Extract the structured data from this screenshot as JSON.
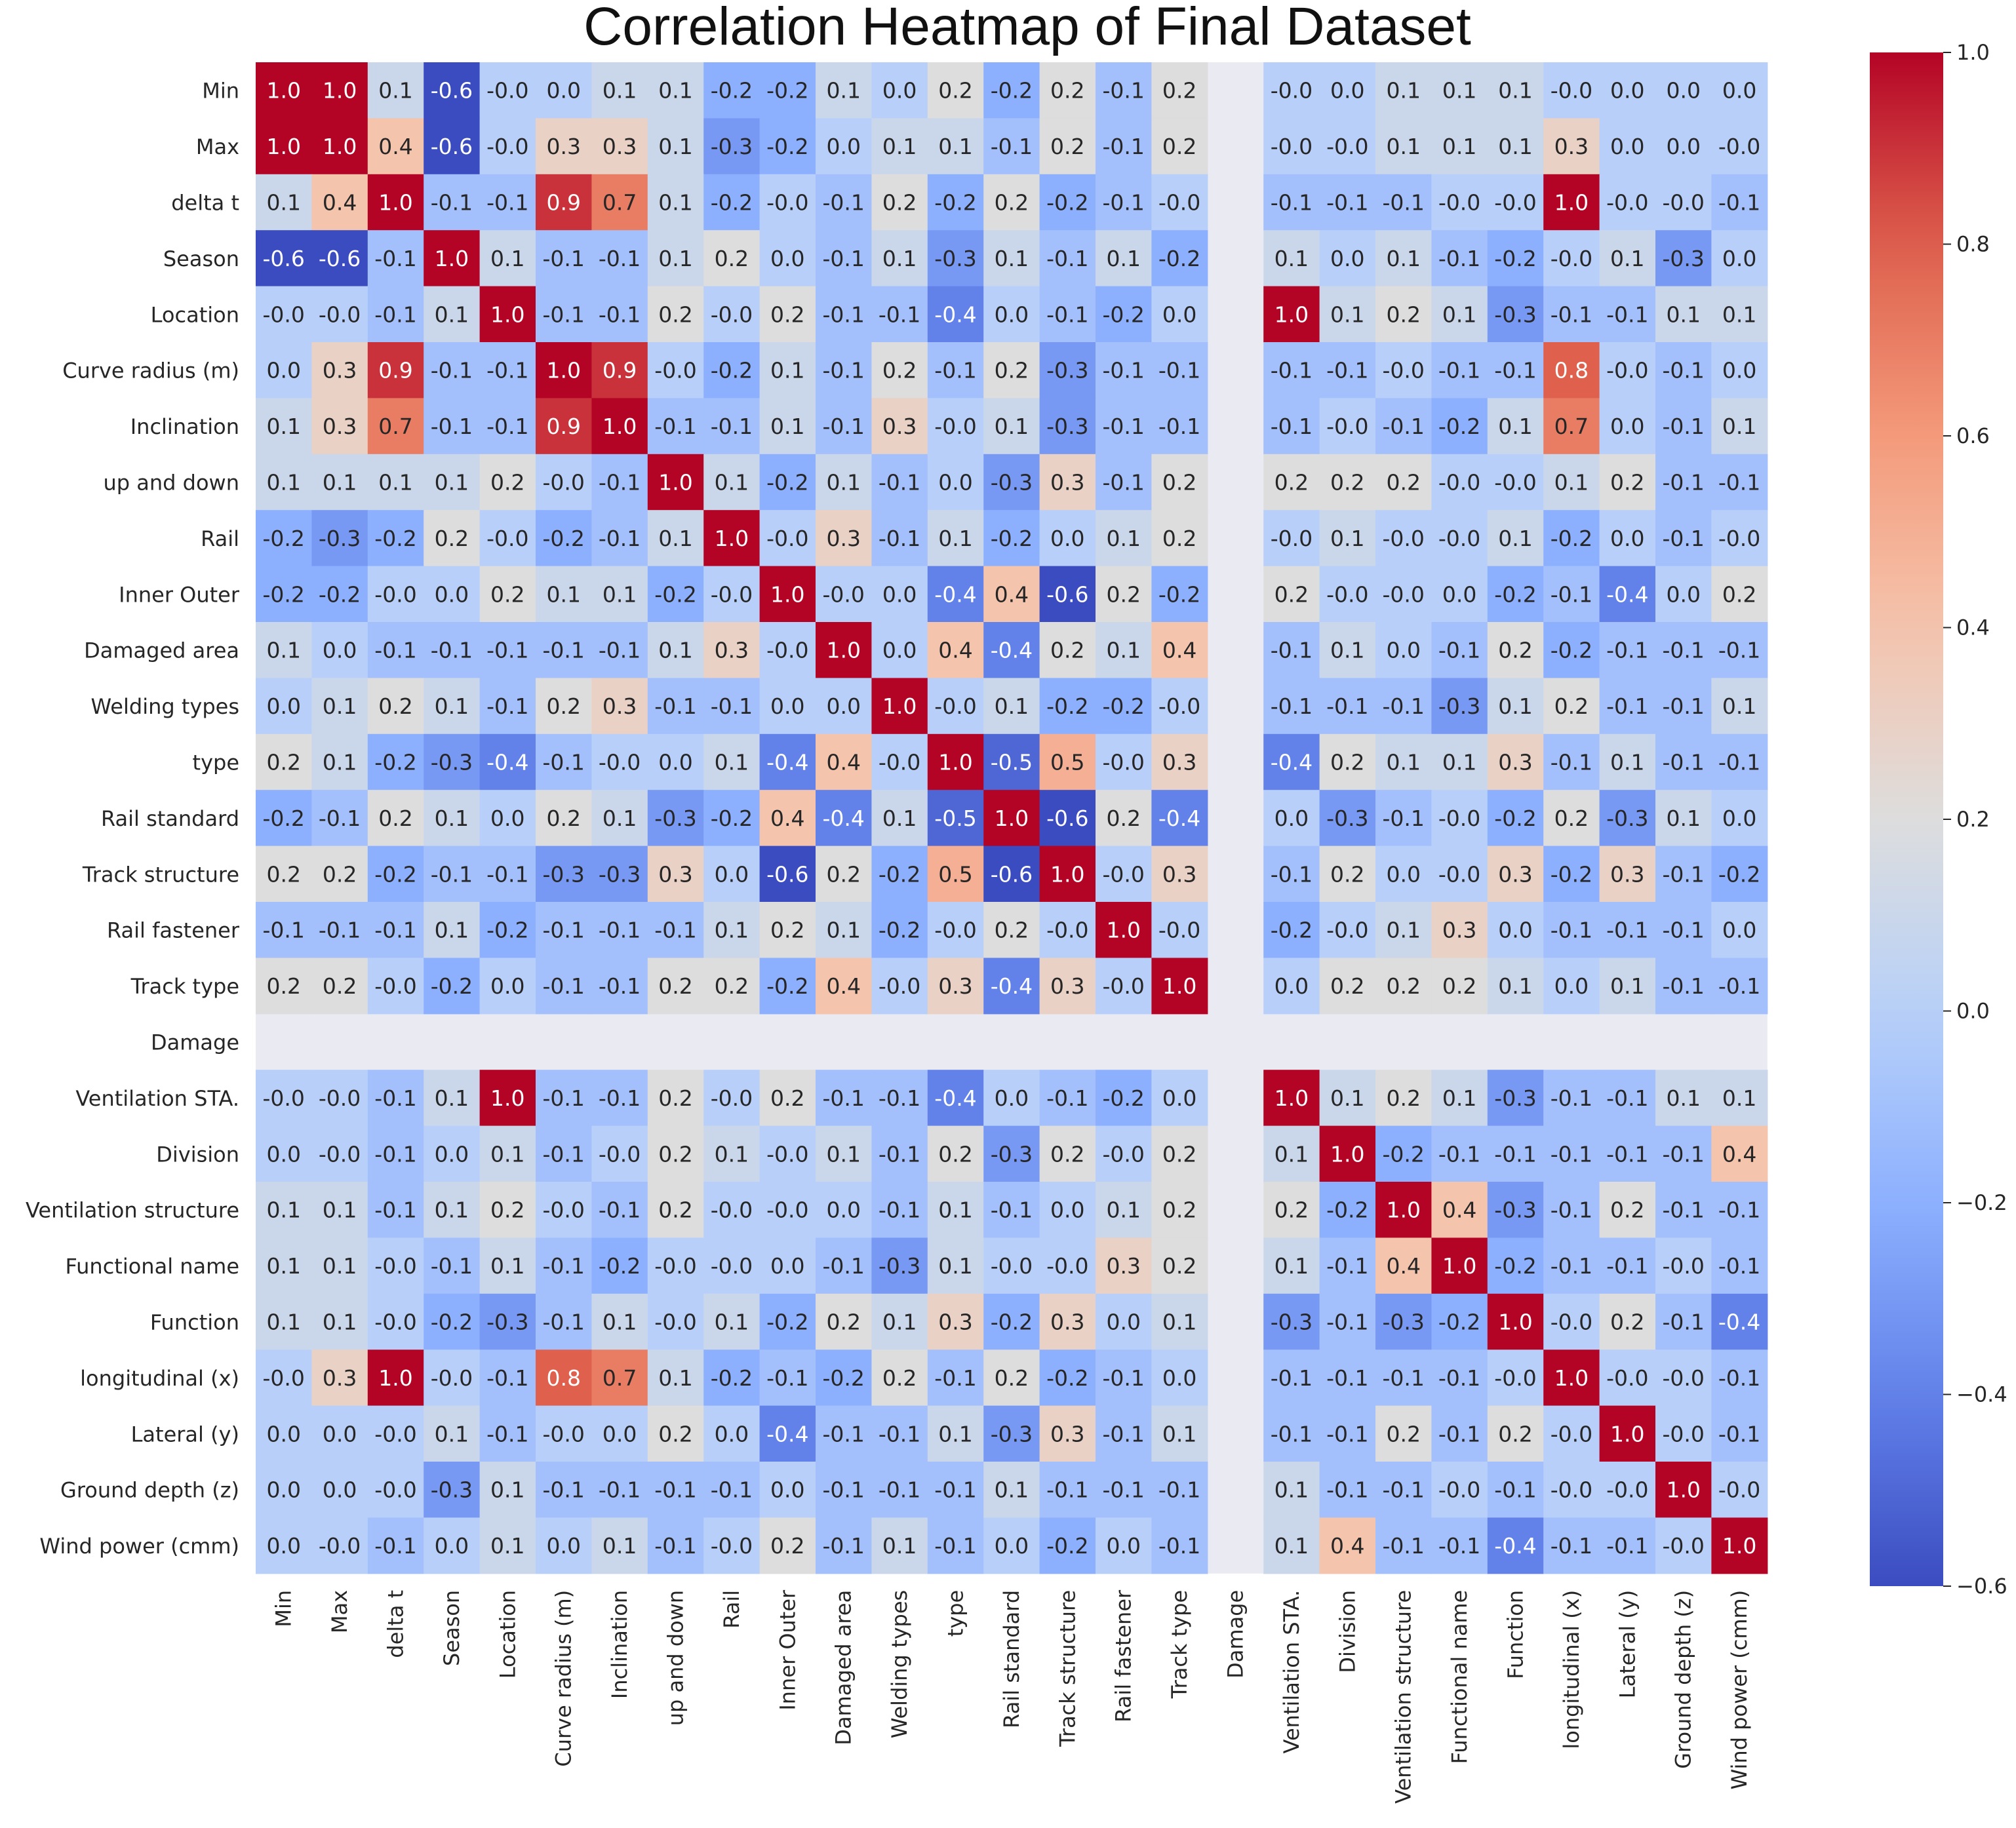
{
  "chart_data": {
    "type": "heatmap",
    "title": "Correlation Heatmap of Final Dataset",
    "labels": [
      "Min",
      "Max",
      "delta t",
      "Season",
      "Location",
      "Curve radius (m)",
      "Inclination",
      "up and down",
      "Rail",
      "Inner Outer",
      "Damaged area",
      "Welding types",
      "type",
      "Rail standard",
      "Track structure",
      "Rail fastener",
      "Track type",
      "Damage",
      "Ventilation STA.",
      "Division",
      "Ventilation structure",
      "Functional name",
      "Function",
      "longitudinal (x)",
      "Lateral (y)",
      "Ground depth (z)",
      "Wind power (cmm)"
    ],
    "matrix": [
      [
        "1.0",
        "1.0",
        "0.1",
        "-0.6",
        "-0.0",
        "0.0",
        "0.1",
        "0.1",
        "-0.2",
        "-0.2",
        "0.1",
        "0.0",
        "0.2",
        "-0.2",
        "0.2",
        "-0.1",
        "0.2",
        null,
        "-0.0",
        "0.0",
        "0.1",
        "0.1",
        "0.1",
        "-0.0",
        "0.0",
        "0.0",
        "0.0"
      ],
      [
        "1.0",
        "1.0",
        "0.4",
        "-0.6",
        "-0.0",
        "0.3",
        "0.3",
        "0.1",
        "-0.3",
        "-0.2",
        "0.0",
        "0.1",
        "0.1",
        "-0.1",
        "0.2",
        "-0.1",
        "0.2",
        null,
        "-0.0",
        "-0.0",
        "0.1",
        "0.1",
        "0.1",
        "0.3",
        "0.0",
        "0.0",
        "-0.0"
      ],
      [
        "0.1",
        "0.4",
        "1.0",
        "-0.1",
        "-0.1",
        "0.9",
        "0.7",
        "0.1",
        "-0.2",
        "-0.0",
        "-0.1",
        "0.2",
        "-0.2",
        "0.2",
        "-0.2",
        "-0.1",
        "-0.0",
        null,
        "-0.1",
        "-0.1",
        "-0.1",
        "-0.0",
        "-0.0",
        "1.0",
        "-0.0",
        "-0.0",
        "-0.1"
      ],
      [
        "-0.6",
        "-0.6",
        "-0.1",
        "1.0",
        "0.1",
        "-0.1",
        "-0.1",
        "0.1",
        "0.2",
        "0.0",
        "-0.1",
        "0.1",
        "-0.3",
        "0.1",
        "-0.1",
        "0.1",
        "-0.2",
        null,
        "0.1",
        "0.0",
        "0.1",
        "-0.1",
        "-0.2",
        "-0.0",
        "0.1",
        "-0.3",
        "0.0"
      ],
      [
        "-0.0",
        "-0.0",
        "-0.1",
        "0.1",
        "1.0",
        "-0.1",
        "-0.1",
        "0.2",
        "-0.0",
        "0.2",
        "-0.1",
        "-0.1",
        "-0.4",
        "0.0",
        "-0.1",
        "-0.2",
        "0.0",
        null,
        "1.0",
        "0.1",
        "0.2",
        "0.1",
        "-0.3",
        "-0.1",
        "-0.1",
        "0.1",
        "0.1"
      ],
      [
        "0.0",
        "0.3",
        "0.9",
        "-0.1",
        "-0.1",
        "1.0",
        "0.9",
        "-0.0",
        "-0.2",
        "0.1",
        "-0.1",
        "0.2",
        "-0.1",
        "0.2",
        "-0.3",
        "-0.1",
        "-0.1",
        null,
        "-0.1",
        "-0.1",
        "-0.0",
        "-0.1",
        "-0.1",
        "0.8",
        "-0.0",
        "-0.1",
        "0.0"
      ],
      [
        "0.1",
        "0.3",
        "0.7",
        "-0.1",
        "-0.1",
        "0.9",
        "1.0",
        "-0.1",
        "-0.1",
        "0.1",
        "-0.1",
        "0.3",
        "-0.0",
        "0.1",
        "-0.3",
        "-0.1",
        "-0.1",
        null,
        "-0.1",
        "-0.0",
        "-0.1",
        "-0.2",
        "0.1",
        "0.7",
        "0.0",
        "-0.1",
        "0.1"
      ],
      [
        "0.1",
        "0.1",
        "0.1",
        "0.1",
        "0.2",
        "-0.0",
        "-0.1",
        "1.0",
        "0.1",
        "-0.2",
        "0.1",
        "-0.1",
        "0.0",
        "-0.3",
        "0.3",
        "-0.1",
        "0.2",
        null,
        "0.2",
        "0.2",
        "0.2",
        "-0.0",
        "-0.0",
        "0.1",
        "0.2",
        "-0.1",
        "-0.1"
      ],
      [
        "-0.2",
        "-0.3",
        "-0.2",
        "0.2",
        "-0.0",
        "-0.2",
        "-0.1",
        "0.1",
        "1.0",
        "-0.0",
        "0.3",
        "-0.1",
        "0.1",
        "-0.2",
        "0.0",
        "0.1",
        "0.2",
        null,
        "-0.0",
        "0.1",
        "-0.0",
        "-0.0",
        "0.1",
        "-0.2",
        "0.0",
        "-0.1",
        "-0.0"
      ],
      [
        "-0.2",
        "-0.2",
        "-0.0",
        "0.0",
        "0.2",
        "0.1",
        "0.1",
        "-0.2",
        "-0.0",
        "1.0",
        "-0.0",
        "0.0",
        "-0.4",
        "0.4",
        "-0.6",
        "0.2",
        "-0.2",
        null,
        "0.2",
        "-0.0",
        "-0.0",
        "0.0",
        "-0.2",
        "-0.1",
        "-0.4",
        "0.0",
        "0.2"
      ],
      [
        "0.1",
        "0.0",
        "-0.1",
        "-0.1",
        "-0.1",
        "-0.1",
        "-0.1",
        "0.1",
        "0.3",
        "-0.0",
        "1.0",
        "0.0",
        "0.4",
        "-0.4",
        "0.2",
        "0.1",
        "0.4",
        null,
        "-0.1",
        "0.1",
        "0.0",
        "-0.1",
        "0.2",
        "-0.2",
        "-0.1",
        "-0.1",
        "-0.1"
      ],
      [
        "0.0",
        "0.1",
        "0.2",
        "0.1",
        "-0.1",
        "0.2",
        "0.3",
        "-0.1",
        "-0.1",
        "0.0",
        "0.0",
        "1.0",
        "-0.0",
        "0.1",
        "-0.2",
        "-0.2",
        "-0.0",
        null,
        "-0.1",
        "-0.1",
        "-0.1",
        "-0.3",
        "0.1",
        "0.2",
        "-0.1",
        "-0.1",
        "0.1"
      ],
      [
        "0.2",
        "0.1",
        "-0.2",
        "-0.3",
        "-0.4",
        "-0.1",
        "-0.0",
        "0.0",
        "0.1",
        "-0.4",
        "0.4",
        "-0.0",
        "1.0",
        "-0.5",
        "0.5",
        "-0.0",
        "0.3",
        null,
        "-0.4",
        "0.2",
        "0.1",
        "0.1",
        "0.3",
        "-0.1",
        "0.1",
        "-0.1",
        "-0.1"
      ],
      [
        "-0.2",
        "-0.1",
        "0.2",
        "0.1",
        "0.0",
        "0.2",
        "0.1",
        "-0.3",
        "-0.2",
        "0.4",
        "-0.4",
        "0.1",
        "-0.5",
        "1.0",
        "-0.6",
        "0.2",
        "-0.4",
        null,
        "0.0",
        "-0.3",
        "-0.1",
        "-0.0",
        "-0.2",
        "0.2",
        "-0.3",
        "0.1",
        "0.0"
      ],
      [
        "0.2",
        "0.2",
        "-0.2",
        "-0.1",
        "-0.1",
        "-0.3",
        "-0.3",
        "0.3",
        "0.0",
        "-0.6",
        "0.2",
        "-0.2",
        "0.5",
        "-0.6",
        "1.0",
        "-0.0",
        "0.3",
        null,
        "-0.1",
        "0.2",
        "0.0",
        "-0.0",
        "0.3",
        "-0.2",
        "0.3",
        "-0.1",
        "-0.2"
      ],
      [
        "-0.1",
        "-0.1",
        "-0.1",
        "0.1",
        "-0.2",
        "-0.1",
        "-0.1",
        "-0.1",
        "0.1",
        "0.2",
        "0.1",
        "-0.2",
        "-0.0",
        "0.2",
        "-0.0",
        "1.0",
        "-0.0",
        null,
        "-0.2",
        "-0.0",
        "0.1",
        "0.3",
        "0.0",
        "-0.1",
        "-0.1",
        "-0.1",
        "0.0"
      ],
      [
        "0.2",
        "0.2",
        "-0.0",
        "-0.2",
        "0.0",
        "-0.1",
        "-0.1",
        "0.2",
        "0.2",
        "-0.2",
        "0.4",
        "-0.0",
        "0.3",
        "-0.4",
        "0.3",
        "-0.0",
        "1.0",
        null,
        "0.0",
        "0.2",
        "0.2",
        "0.2",
        "0.1",
        "0.0",
        "0.1",
        "-0.1",
        "-0.1"
      ],
      [
        null,
        null,
        null,
        null,
        null,
        null,
        null,
        null,
        null,
        null,
        null,
        null,
        null,
        null,
        null,
        null,
        null,
        null,
        null,
        null,
        null,
        null,
        null,
        null,
        null,
        null,
        null
      ],
      [
        "-0.0",
        "-0.0",
        "-0.1",
        "0.1",
        "1.0",
        "-0.1",
        "-0.1",
        "0.2",
        "-0.0",
        "0.2",
        "-0.1",
        "-0.1",
        "-0.4",
        "0.0",
        "-0.1",
        "-0.2",
        "0.0",
        null,
        "1.0",
        "0.1",
        "0.2",
        "0.1",
        "-0.3",
        "-0.1",
        "-0.1",
        "0.1",
        "0.1"
      ],
      [
        "0.0",
        "-0.0",
        "-0.1",
        "0.0",
        "0.1",
        "-0.1",
        "-0.0",
        "0.2",
        "0.1",
        "-0.0",
        "0.1",
        "-0.1",
        "0.2",
        "-0.3",
        "0.2",
        "-0.0",
        "0.2",
        null,
        "0.1",
        "1.0",
        "-0.2",
        "-0.1",
        "-0.1",
        "-0.1",
        "-0.1",
        "-0.1",
        "0.4"
      ],
      [
        "0.1",
        "0.1",
        "-0.1",
        "0.1",
        "0.2",
        "-0.0",
        "-0.1",
        "0.2",
        "-0.0",
        "-0.0",
        "0.0",
        "-0.1",
        "0.1",
        "-0.1",
        "0.0",
        "0.1",
        "0.2",
        null,
        "0.2",
        "-0.2",
        "1.0",
        "0.4",
        "-0.3",
        "-0.1",
        "0.2",
        "-0.1",
        "-0.1"
      ],
      [
        "0.1",
        "0.1",
        "-0.0",
        "-0.1",
        "0.1",
        "-0.1",
        "-0.2",
        "-0.0",
        "-0.0",
        "0.0",
        "-0.1",
        "-0.3",
        "0.1",
        "-0.0",
        "-0.0",
        "0.3",
        "0.2",
        null,
        "0.1",
        "-0.1",
        "0.4",
        "1.0",
        "-0.2",
        "-0.1",
        "-0.1",
        "-0.0",
        "-0.1"
      ],
      [
        "0.1",
        "0.1",
        "-0.0",
        "-0.2",
        "-0.3",
        "-0.1",
        "0.1",
        "-0.0",
        "0.1",
        "-0.2",
        "0.2",
        "0.1",
        "0.3",
        "-0.2",
        "0.3",
        "0.0",
        "0.1",
        null,
        "-0.3",
        "-0.1",
        "-0.3",
        "-0.2",
        "1.0",
        "-0.0",
        "0.2",
        "-0.1",
        "-0.4"
      ],
      [
        "-0.0",
        "0.3",
        "1.0",
        "-0.0",
        "-0.1",
        "0.8",
        "0.7",
        "0.1",
        "-0.2",
        "-0.1",
        "-0.2",
        "0.2",
        "-0.1",
        "0.2",
        "-0.2",
        "-0.1",
        "0.0",
        null,
        "-0.1",
        "-0.1",
        "-0.1",
        "-0.1",
        "-0.0",
        "1.0",
        "-0.0",
        "-0.0",
        "-0.1"
      ],
      [
        "0.0",
        "0.0",
        "-0.0",
        "0.1",
        "-0.1",
        "-0.0",
        "0.0",
        "0.2",
        "0.0",
        "-0.4",
        "-0.1",
        "-0.1",
        "0.1",
        "-0.3",
        "0.3",
        "-0.1",
        "0.1",
        null,
        "-0.1",
        "-0.1",
        "0.2",
        "-0.1",
        "0.2",
        "-0.0",
        "1.0",
        "-0.0",
        "-0.1"
      ],
      [
        "0.0",
        "0.0",
        "-0.0",
        "-0.3",
        "0.1",
        "-0.1",
        "-0.1",
        "-0.1",
        "-0.1",
        "0.0",
        "-0.1",
        "-0.1",
        "-0.1",
        "0.1",
        "-0.1",
        "-0.1",
        "-0.1",
        null,
        "0.1",
        "-0.1",
        "-0.1",
        "-0.0",
        "-0.1",
        "-0.0",
        "-0.0",
        "1.0",
        "-0.0"
      ],
      [
        "0.0",
        "-0.0",
        "-0.1",
        "0.0",
        "0.1",
        "0.0",
        "0.1",
        "-0.1",
        "-0.0",
        "0.2",
        "-0.1",
        "0.1",
        "-0.1",
        "0.0",
        "-0.2",
        "0.0",
        "-0.1",
        null,
        "0.1",
        "0.4",
        "-0.1",
        "-0.1",
        "-0.4",
        "-0.1",
        "-0.1",
        "-0.0",
        "1.0"
      ]
    ],
    "colorbar": {
      "range": [
        -0.6,
        1.0
      ],
      "ticks": [
        "1.0",
        "0.8",
        "0.6",
        "0.4",
        "0.2",
        "0.0",
        "−0.2",
        "−0.4",
        "−0.6"
      ],
      "colormap": "coolwarm"
    },
    "missing_cell_color": "#eaeaf2",
    "grid": false
  }
}
